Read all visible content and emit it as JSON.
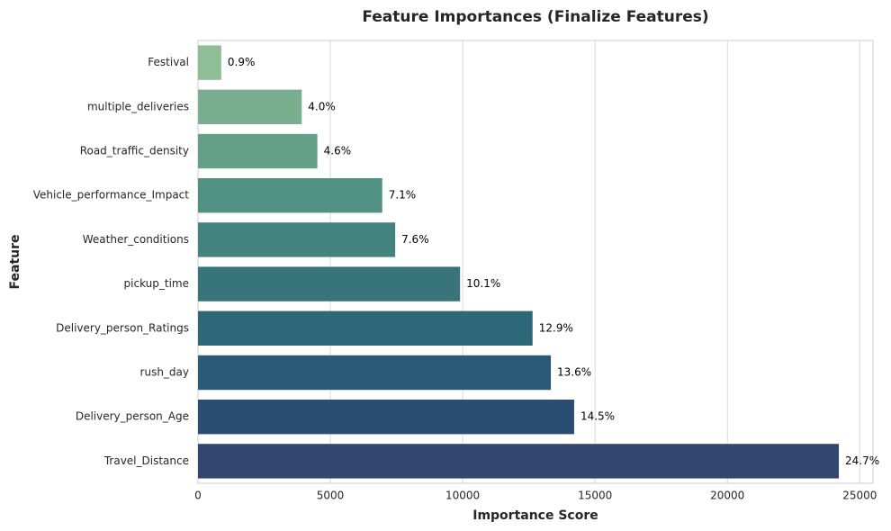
{
  "chart_data": {
    "type": "barh",
    "title": "Feature Importances (Finalize Features)",
    "x_label": "Importance Score",
    "y_label": "Feature",
    "categories": [
      "Festival",
      "multiple_deliveries",
      "Road_traffic_density",
      "Vehicle_performance_Impact",
      "Weather_conditions",
      "pickup_time",
      "Delivery_person_Ratings",
      "rush_day",
      "Delivery_person_Age",
      "Travel_Distance"
    ],
    "values": [
      880,
      3920,
      4510,
      6960,
      7450,
      9900,
      12640,
      13330,
      14210,
      24210
    ],
    "value_labels": [
      "0.9%",
      "4.0%",
      "4.6%",
      "7.1%",
      "7.6%",
      "10.1%",
      "12.9%",
      "13.6%",
      "14.5%",
      "24.7%"
    ],
    "colors": [
      "#8fbe96",
      "#79ae8e",
      "#649f88",
      "#519183",
      "#43827f",
      "#38757b",
      "#2e6878",
      "#295a76",
      "#2b4c73",
      "#33466f"
    ],
    "xlim": [
      0,
      25500
    ],
    "xticks": [
      0,
      5000,
      10000,
      15000,
      20000,
      25000
    ],
    "grid": true
  }
}
